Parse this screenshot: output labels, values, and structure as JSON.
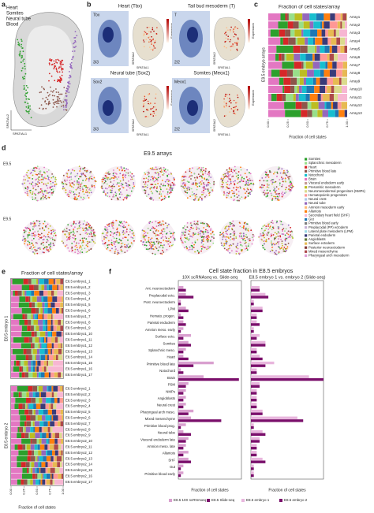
{
  "panels": {
    "a": {
      "letter": "a",
      "legend": [
        {
          "name": "Heart",
          "color": "#d62728"
        },
        {
          "name": "Somites",
          "color": "#2ca02c"
        },
        {
          "name": "Neural tube",
          "color": "#9467bd"
        },
        {
          "name": "Blood",
          "color": "#8c564b"
        }
      ],
      "x_label": "SPATIAL1",
      "y_label": "SPATIAL2"
    },
    "b": {
      "letter": "b",
      "scale_label": "Expression",
      "x_label": "SPATIAL1",
      "y_label": "SPATIAL2",
      "genes": [
        {
          "title": "Heart (Tbx)",
          "gene": "Tbx",
          "count": "3/3"
        },
        {
          "title": "Tail bud mesoderm (T)",
          "gene": "T",
          "count": "2/2"
        },
        {
          "title": "Neural tube (Sox2)",
          "gene": "Sox2",
          "count": "3/3"
        },
        {
          "title": "Somites (Meox1)",
          "gene": "Meox1",
          "count": "2/2"
        }
      ]
    },
    "c": {
      "letter": "c",
      "title": "Fraction of cell states/array",
      "group_label": "E9.5 embryo arrays",
      "x_label": "Fraction of cell states",
      "rows": [
        "Array1",
        "Array2",
        "Array3",
        "Array4",
        "Array5",
        "Array6",
        "Array7",
        "Array8",
        "Array9",
        "Array10",
        "Array11",
        "Array12",
        "Array13"
      ],
      "xlim": [
        0,
        1
      ],
      "xticks": [
        {
          "value": 0,
          "label": "0.00"
        },
        {
          "value": 0.25,
          "label": "0.25"
        },
        {
          "value": 0.5,
          "label": "0.50"
        },
        {
          "value": 0.75,
          "label": "0.75"
        },
        {
          "value": 1,
          "label": "1.00"
        }
      ]
    },
    "d": {
      "letter": "d",
      "title": "E9.5 arrays",
      "row_labels": [
        "E9.5",
        "E9.5"
      ],
      "legend": [
        {
          "name": "Somites",
          "color": "#2ca02c"
        },
        {
          "name": "Splanchnic mesoderm",
          "color": "#98df8a"
        },
        {
          "name": "Heart",
          "color": "#d62728"
        },
        {
          "name": "Primitive blood late",
          "color": "#8c564b"
        },
        {
          "name": "Notochord",
          "color": "#17becf"
        },
        {
          "name": "Brain",
          "color": "#e377c2"
        },
        {
          "name": "Visceral endoderm early",
          "color": "#c49c94"
        },
        {
          "name": "Presomitic mesoderm",
          "color": "#bcbd22"
        },
        {
          "name": "Neuromesodermal progenitors (NMPs)",
          "color": "#dbdb8d"
        },
        {
          "name": "Hematopoietic progenitors",
          "color": "#ff9896"
        },
        {
          "name": "Neural crest",
          "color": "#aec7e8"
        },
        {
          "name": "Neural tube",
          "color": "#9467bd"
        },
        {
          "name": "Amnion mesoderm early",
          "color": "#ffbb78"
        },
        {
          "name": "Allantois",
          "color": "#ff7f0e"
        },
        {
          "name": "Secondary heart field (SHF)",
          "color": "#f7b6d2"
        },
        {
          "name": "Gut",
          "color": "#1f77b4"
        },
        {
          "name": "Primitive blood early",
          "color": "#7f7f7f"
        },
        {
          "name": "Preplacodal (PP) ectoderm",
          "color": "#c5b0d5"
        },
        {
          "name": "Lateral plate mesoderm (LPM)",
          "color": "#9edae5"
        },
        {
          "name": "Parietal endoderm",
          "color": "#393b79"
        },
        {
          "name": "Angioblasts",
          "color": "#637939"
        },
        {
          "name": "Surface ectoderm",
          "color": "#e7ba52"
        },
        {
          "name": "Posterior neuroectoderm",
          "color": "#843c39"
        },
        {
          "name": "Mixed mesenchyme",
          "color": "#ad494a"
        },
        {
          "name": "Pharyngeal arch mesoderm",
          "color": "#de9ed6"
        }
      ]
    },
    "e": {
      "letter": "e",
      "title": "Fraction of cell states/array",
      "group_labels": [
        "E8.5 embryo 1",
        "E8.5 embryo 2"
      ],
      "x_label": "Fraction of cell states",
      "rows": [
        [
          "E8.5 embryo1_1",
          "E8.5 embryo1_2",
          "E8.5 embryo1_3",
          "E8.5 embryo1_4",
          "E8.5 embryo1_5",
          "E8.5 embryo1_6",
          "E8.5 embryo1_7",
          "E8.5 embryo1_8",
          "E8.5 embryo1_9",
          "E8.5 embryo1_10",
          "E8.5 embryo1_11",
          "E8.5 embryo1_12",
          "E8.5 embryo1_13",
          "E8.5 embryo1_14",
          "E8.5 embryo1_15",
          "E8.5 embryo1_16",
          "E8.5 embryo1_17"
        ],
        [
          "E8.5 embryo2_1",
          "E8.5 embryo2_2",
          "E8.5 embryo2_3",
          "E8.5 embryo2_4",
          "E8.5 embryo2_5",
          "E8.5 embryo2_6",
          "E8.5 embryo2_7",
          "E8.5 embryo2_8",
          "E8.5 embryo2_9",
          "E8.5 embryo2_10",
          "E8.5 embryo2_11",
          "E8.5 embryo2_12",
          "E8.5 embryo2_13",
          "E8.5 embryo2_14",
          "E8.5 embryo2_15",
          "E8.5 embryo2_16",
          "E8.5 embryo2_17"
        ]
      ],
      "xlim": [
        0,
        1
      ],
      "xticks": [
        {
          "value": 0,
          "label": "0.00"
        },
        {
          "value": 0.25,
          "label": "0.25"
        },
        {
          "value": 0.5,
          "label": "0.50"
        },
        {
          "value": 0.75,
          "label": "0.75"
        },
        {
          "value": 1,
          "label": "1.00"
        }
      ]
    },
    "f": {
      "letter": "f",
      "title": "Cell state fraction in E8.5 embryos"
    }
  },
  "chart_data": [
    {
      "type": "bar",
      "orientation": "horizontal",
      "subtitle": "10X scRNAseq vs. Slide-seq",
      "x_label": "Fraction of cell states",
      "xlim": [
        0,
        0.25
      ],
      "categories": [
        "Ant. neuroectoderm",
        "Preplacodal ecto.",
        "Post. neuroectoderm",
        "LPM",
        "Hemato. progen.",
        "Parietal endoderm",
        "Amnion meso. early",
        "Surface ecto.",
        "Somites",
        "Splanchnic meso.",
        "Heart",
        "Primitive blood late",
        "Notochord",
        "Brain",
        "PSM",
        "NMPs",
        "Angioblasts",
        "Neural crest",
        "Pharyngeal arch meso.",
        "Mixed mesenchyme",
        "Primitive blood prog.",
        "Neural tube",
        "Visceral endoderm late",
        "Amnion meso. late",
        "Allantois",
        "SHF",
        "Gut",
        "Primitive blood early"
      ],
      "series": [
        {
          "name": "E8.5 10X scRNAseq",
          "color": "#d9a0cf",
          "values": [
            0.02,
            0.03,
            0.01,
            0.03,
            0.01,
            0.02,
            0.02,
            0.05,
            0.04,
            0.03,
            0.02,
            0.14,
            0.01,
            0.1,
            0.04,
            0.03,
            0.03,
            0.03,
            0.06,
            0.05,
            0.03,
            0.02,
            0.04,
            0.03,
            0.04,
            0.04,
            0.02,
            0.02
          ]
        },
        {
          "name": "E8.5 Slide-seq",
          "color": "#7a0f6b",
          "values": [
            0.03,
            0.06,
            0.01,
            0.04,
            0.02,
            0.03,
            0.01,
            0.02,
            0.05,
            0.02,
            0.04,
            0.06,
            0.02,
            0.24,
            0.03,
            0.02,
            0.02,
            0.02,
            0.04,
            0.17,
            0.01,
            0.05,
            0.03,
            0.02,
            0.02,
            0.05,
            0.01,
            0.01
          ]
        }
      ]
    },
    {
      "type": "bar",
      "orientation": "horizontal",
      "subtitle": "E8.5 embryo 1 vs. embryo 2 (Slide-seq)",
      "x_label": "Fraction of cell states",
      "xlim": [
        0,
        0.25
      ],
      "series": [
        {
          "name": "E8.5 embryo 1",
          "color": "#e8b6dd",
          "values": [
            0.03,
            0.05,
            0.01,
            0.04,
            0.02,
            0.02,
            0.01,
            0.03,
            0.05,
            0.02,
            0.03,
            0.08,
            0.02,
            0.2,
            0.03,
            0.02,
            0.02,
            0.02,
            0.04,
            0.16,
            0.01,
            0.04,
            0.03,
            0.02,
            0.02,
            0.04,
            0.01,
            0.01
          ]
        },
        {
          "name": "E8.5 embryo 2",
          "color": "#7a0f6b",
          "values": [
            0.03,
            0.06,
            0.01,
            0.04,
            0.02,
            0.03,
            0.01,
            0.02,
            0.05,
            0.02,
            0.04,
            0.05,
            0.02,
            0.25,
            0.03,
            0.02,
            0.02,
            0.02,
            0.04,
            0.18,
            0.01,
            0.05,
            0.03,
            0.02,
            0.02,
            0.05,
            0.01,
            0.01
          ]
        }
      ]
    }
  ]
}
